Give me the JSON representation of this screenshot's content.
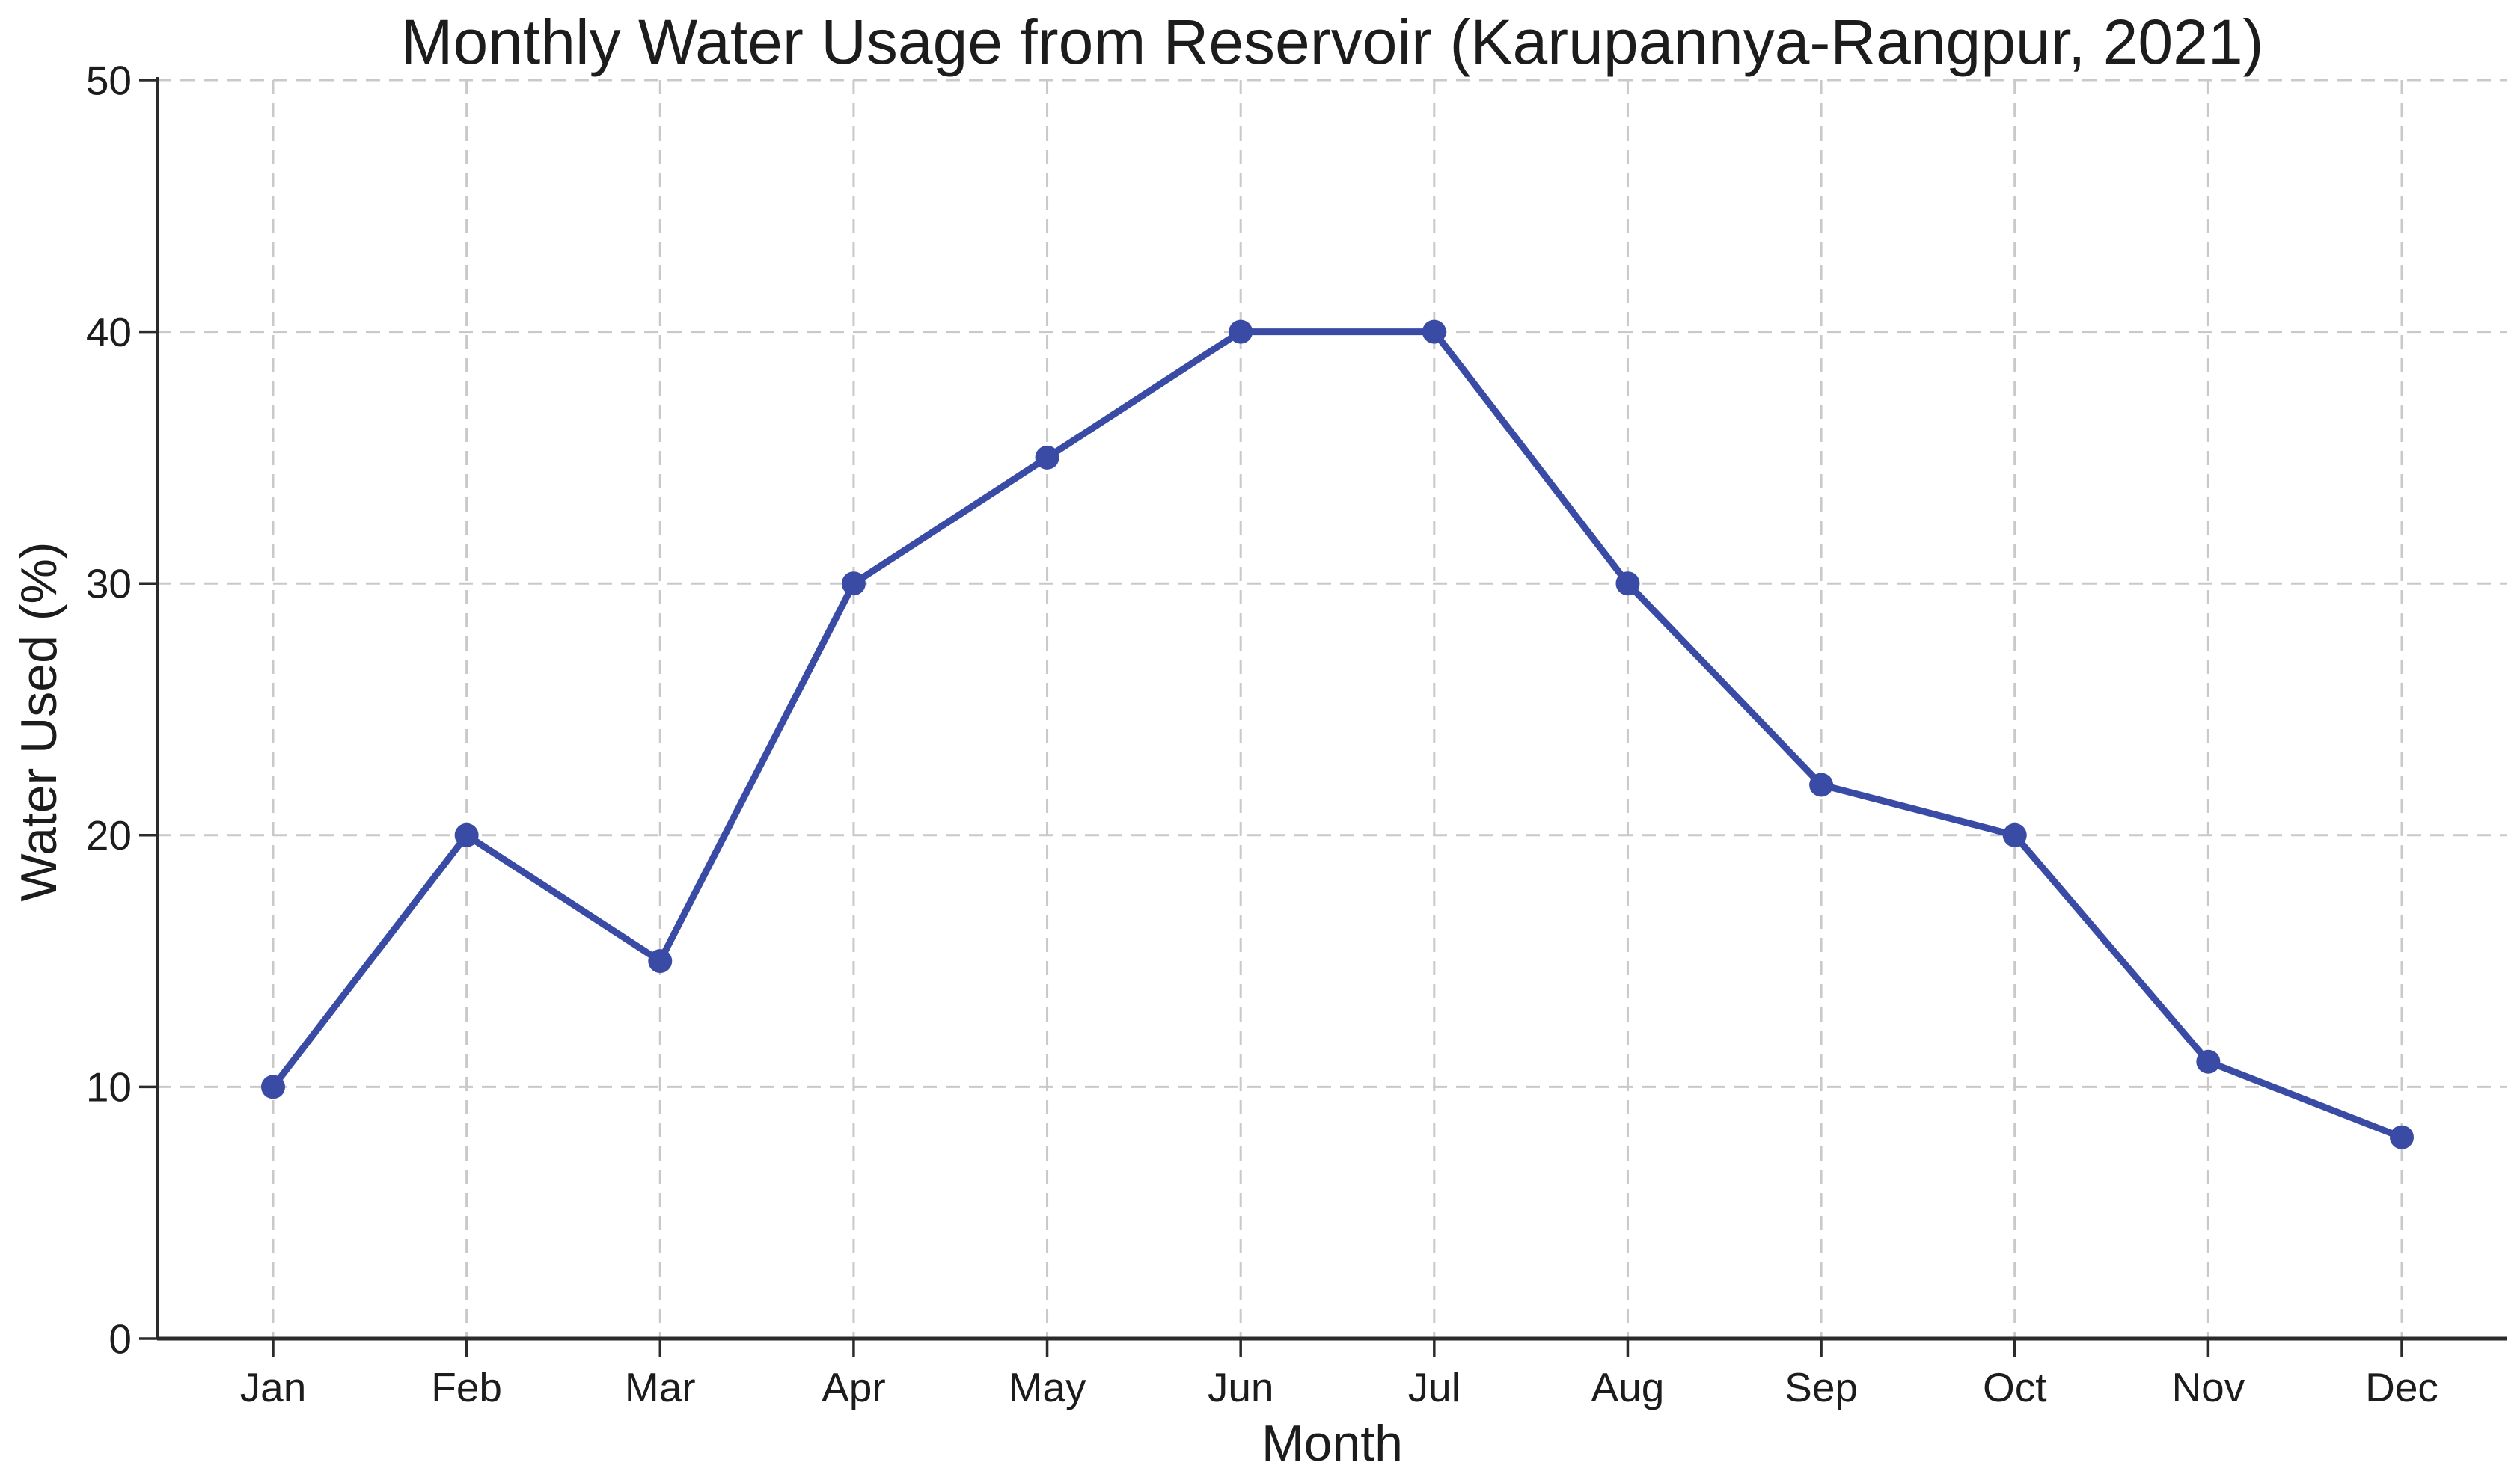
{
  "chart_data": {
    "type": "line",
    "title": "Monthly Water Usage from Reservoir (Karupannya-Rangpur, 2021)",
    "xlabel": "Month",
    "ylabel": "Water Used (%)",
    "categories": [
      "Jan",
      "Feb",
      "Mar",
      "Apr",
      "May",
      "Jun",
      "Jul",
      "Aug",
      "Sep",
      "Oct",
      "Nov",
      "Dec"
    ],
    "values": [
      10,
      20,
      15,
      30,
      35,
      40,
      40,
      30,
      22,
      20,
      11,
      8
    ],
    "ylim": [
      0,
      50
    ],
    "yticks": [
      0,
      10,
      20,
      30,
      40,
      50
    ],
    "grid": "on",
    "grid_style": "dashed",
    "legend_position": "none",
    "colors": {
      "line": "#3A4BA6",
      "marker": "#3A4BA6",
      "grid": "#C9C9C9",
      "axis": "#2B2B2B",
      "text": "#1C1C1C",
      "background": "#FFFFFF"
    }
  }
}
